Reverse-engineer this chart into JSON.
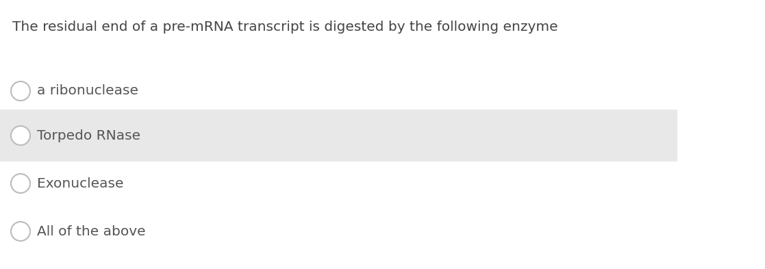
{
  "question": "The residual end of a pre-mRNA transcript is digested by the following enzyme",
  "options": [
    {
      "text": "a ribonuclease",
      "highlighted": false
    },
    {
      "text": "Torpedo RNase",
      "highlighted": true
    },
    {
      "text": "Exonuclease",
      "highlighted": false
    },
    {
      "text": "All of the above",
      "highlighted": false
    }
  ],
  "bg_color": "#ffffff",
  "highlight_color": "#e8e8e8",
  "question_color": "#444444",
  "option_color": "#555555",
  "circle_edge_color": "#bbbbbb",
  "circle_face_color": "#ffffff",
  "question_fontsize": 14.5,
  "option_fontsize": 14.5,
  "fig_width": 11.17,
  "fig_height": 3.93,
  "dpi": 100
}
